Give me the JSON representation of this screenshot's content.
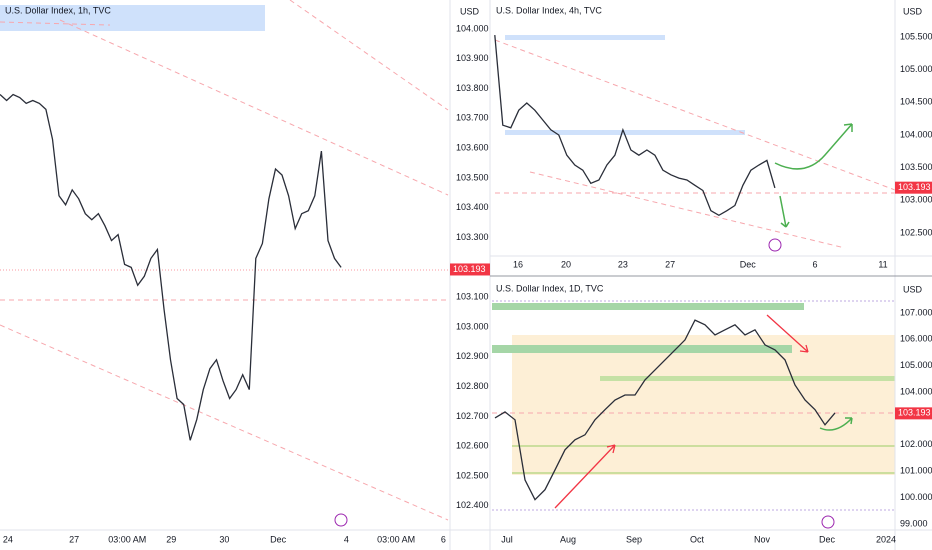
{
  "chart_data": [
    {
      "type": "line",
      "title": "U.S. Dollar Index, 1h, TVC",
      "currency": "USD",
      "last_price": 103.193,
      "color": "#2a2e39",
      "values": [
        103.78,
        103.76,
        103.78,
        103.77,
        103.75,
        103.76,
        103.75,
        103.73,
        103.63,
        103.44,
        103.41,
        103.46,
        103.43,
        103.38,
        103.36,
        103.38,
        103.34,
        103.29,
        103.31,
        103.21,
        103.2,
        103.14,
        103.17,
        103.23,
        103.26,
        103.06,
        102.89,
        102.76,
        102.74,
        102.62,
        102.69,
        102.79,
        102.86,
        102.89,
        102.82,
        102.76,
        102.79,
        102.84,
        102.79,
        103.23,
        103.28,
        103.43,
        103.53,
        103.51,
        103.44,
        103.33,
        103.38,
        103.39,
        103.44,
        103.59,
        103.29,
        103.23,
        103.2
      ],
      "xlim": [
        0,
        68.3
      ],
      "ylim": [
        102.319,
        104.097
      ],
      "xticks": [
        {
          "value": 1.2,
          "label": "24"
        },
        {
          "value": 11.3,
          "label": "27"
        },
        {
          "value": 19.4,
          "label": "03:00 AM"
        },
        {
          "value": 26.1,
          "label": "29"
        },
        {
          "value": 34.2,
          "label": "30"
        },
        {
          "value": 42.4,
          "label": "Dec"
        },
        {
          "value": 52.8,
          "label": "4"
        },
        {
          "value": 60.4,
          "label": "03:00 AM"
        },
        {
          "value": 67.6,
          "label": "6"
        }
      ],
      "yticks": [
        {
          "value": 104.0,
          "label": "104.000"
        },
        {
          "value": 103.9,
          "label": "103.900"
        },
        {
          "value": 103.8,
          "label": "103.800"
        },
        {
          "value": 103.7,
          "label": "103.700"
        },
        {
          "value": 103.6,
          "label": "103.600"
        },
        {
          "value": 103.5,
          "label": "103.500"
        },
        {
          "value": 103.4,
          "label": "103.400"
        },
        {
          "value": 103.3,
          "label": "103.300"
        },
        {
          "value": 103.1,
          "label": "103.100"
        },
        {
          "value": 103.0,
          "label": "103.000"
        },
        {
          "value": 102.9,
          "label": "102.900"
        },
        {
          "value": 102.8,
          "label": "102.800"
        },
        {
          "value": 102.7,
          "label": "102.700"
        },
        {
          "value": 102.6,
          "label": "102.600"
        },
        {
          "value": 102.5,
          "label": "102.500"
        },
        {
          "value": 102.4,
          "label": "102.400"
        }
      ],
      "grid": false
    },
    {
      "type": "line",
      "title": "U.S. Dollar Index, 4h, TVC",
      "currency": "USD",
      "last_price": 103.193,
      "color": "#2a2e39",
      "values": [
        105.53,
        104.15,
        104.11,
        104.38,
        104.49,
        104.38,
        104.23,
        104.08,
        104.0,
        103.69,
        103.54,
        103.46,
        103.26,
        103.31,
        103.54,
        103.69,
        104.08,
        103.77,
        103.69,
        103.77,
        103.69,
        103.46,
        103.39,
        103.34,
        103.31,
        103.23,
        103.15,
        102.84,
        102.77,
        102.84,
        102.92,
        103.23,
        103.46,
        103.54,
        103.61,
        103.19
      ],
      "xlim": [
        -0.6,
        50
      ],
      "ylim": [
        102.162,
        106.067
      ],
      "xticks": [
        {
          "value": 2.9,
          "label": "16"
        },
        {
          "value": 8.9,
          "label": "20"
        },
        {
          "value": 16,
          "label": "23"
        },
        {
          "value": 21.9,
          "label": "27"
        },
        {
          "value": 31.6,
          "label": "Dec"
        },
        {
          "value": 40,
          "label": "6"
        },
        {
          "value": 48.5,
          "label": "11"
        }
      ],
      "yticks": [
        {
          "value": 105.5,
          "label": "105.500"
        },
        {
          "value": 105.0,
          "label": "105.000"
        },
        {
          "value": 104.5,
          "label": "104.500"
        },
        {
          "value": 104.0,
          "label": "104.000"
        },
        {
          "value": 103.5,
          "label": "103.500"
        },
        {
          "value": 103.0,
          "label": "103.000"
        },
        {
          "value": 102.5,
          "label": "102.500"
        }
      ],
      "grid": false
    },
    {
      "type": "line",
      "title": "U.S. Dollar Index, 1D, TVC",
      "currency": "USD",
      "last_price": 103.193,
      "color": "#2a2e39",
      "values": [
        103.02,
        103.25,
        102.95,
        100.67,
        99.92,
        100.3,
        101.05,
        101.81,
        102.19,
        102.38,
        102.95,
        103.33,
        103.7,
        103.89,
        103.89,
        104.46,
        104.84,
        105.22,
        105.6,
        105.98,
        106.73,
        106.55,
        106.17,
        106.36,
        106.55,
        106.17,
        106.36,
        105.79,
        105.6,
        105.22,
        104.27,
        103.7,
        103.33,
        102.76,
        103.21
      ],
      "xlim": [
        -0.5,
        40
      ],
      "ylim": [
        98.77,
        108.25
      ],
      "xticks": [
        {
          "value": 1.2,
          "label": "Jul"
        },
        {
          "value": 7.3,
          "label": "Aug"
        },
        {
          "value": 13.9,
          "label": "Sep"
        },
        {
          "value": 20.2,
          "label": "Oct"
        },
        {
          "value": 26.7,
          "label": "Nov"
        },
        {
          "value": 33.2,
          "label": "Dec"
        },
        {
          "value": 39.1,
          "label": "2024"
        }
      ],
      "yticks": [
        {
          "value": 107.0,
          "label": "107.000"
        },
        {
          "value": 106.0,
          "label": "106.000"
        },
        {
          "value": 105.0,
          "label": "105.000"
        },
        {
          "value": 104.0,
          "label": "104.000"
        },
        {
          "value": 102.0,
          "label": "102.000"
        },
        {
          "value": 101.0,
          "label": "101.000"
        },
        {
          "value": 100.0,
          "label": "100.000"
        },
        {
          "value": 99.0,
          "label": "99.000"
        }
      ],
      "grid": false
    }
  ]
}
